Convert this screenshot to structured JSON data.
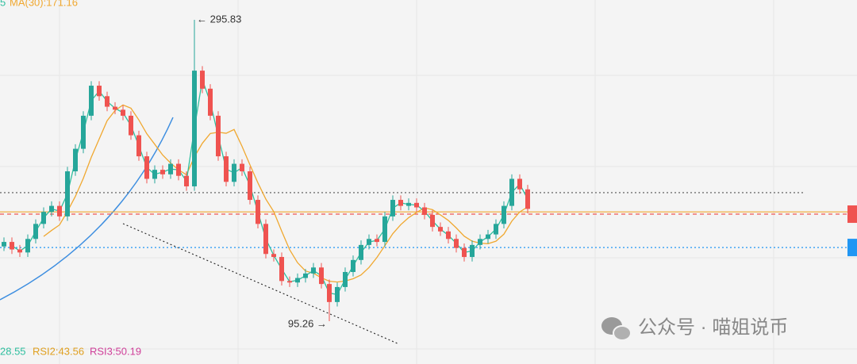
{
  "chart_data": {
    "type": "candlestick",
    "legend_top": {
      "partial": "5",
      "ma": "MA(30):171.16"
    },
    "legend_bottom": {
      "rsi1": "28.55",
      "rsi2": "RSI2:43.56",
      "rsi3": "RSI3:50.19"
    },
    "annotations": {
      "high": "← 295.83",
      "low": "95.26 →"
    },
    "watermark": "公众号 · 喵姐说币",
    "up_color": "#26a69a",
    "down_color": "#ef5350",
    "ma_color": "#f0a830",
    "ma_short_color": "#2fbf9f",
    "candles": {
      "open": [
        145,
        148,
        143,
        141,
        150,
        160,
        168,
        172,
        165,
        195,
        210,
        232,
        252,
        245,
        238,
        236,
        232,
        219,
        205,
        190,
        196,
        193,
        200,
        192,
        185,
        262,
        250,
        232,
        205,
        188,
        200,
        195,
        176,
        160,
        140,
        138,
        122,
        121,
        124,
        127,
        131,
        120,
        108,
        118,
        128,
        136,
        146,
        150,
        148,
        165,
        176,
        172,
        174,
        171,
        166,
        158,
        155,
        150,
        144,
        138,
        146,
        150,
        153,
        160,
        172,
        190,
        183
      ],
      "high": [
        151,
        151,
        146,
        153,
        163,
        171,
        175,
        175,
        198,
        213,
        235,
        255,
        255,
        248,
        241,
        239,
        235,
        222,
        208,
        199,
        199,
        203,
        203,
        195,
        295.83,
        265,
        253,
        235,
        208,
        203,
        203,
        198,
        179,
        163,
        143,
        141,
        125,
        127,
        130,
        134,
        134,
        123,
        121,
        131,
        139,
        149,
        153,
        153,
        168,
        179,
        179,
        177,
        177,
        174,
        169,
        161,
        158,
        153,
        147,
        149,
        153,
        156,
        163,
        175,
        193,
        193,
        186
      ],
      "low": [
        142,
        140,
        138,
        138,
        147,
        157,
        165,
        162,
        162,
        192,
        207,
        229,
        242,
        235,
        233,
        229,
        216,
        202,
        187,
        187,
        190,
        190,
        189,
        182,
        182,
        247,
        229,
        202,
        185,
        185,
        192,
        173,
        157,
        137,
        135,
        119,
        118,
        118,
        121,
        124,
        117,
        95.26,
        105,
        115,
        125,
        133,
        143,
        145,
        145,
        162,
        169,
        169,
        168,
        163,
        155,
        152,
        147,
        141,
        135,
        135,
        143,
        147,
        150,
        157,
        169,
        180,
        167
      ],
      "close": [
        148,
        143,
        141,
        150,
        160,
        168,
        172,
        165,
        195,
        210,
        232,
        252,
        245,
        238,
        236,
        232,
        219,
        205,
        190,
        196,
        193,
        200,
        192,
        185,
        262,
        250,
        232,
        205,
        188,
        200,
        195,
        176,
        160,
        140,
        138,
        122,
        121,
        124,
        127,
        131,
        120,
        108,
        118,
        128,
        136,
        146,
        150,
        148,
        165,
        176,
        172,
        174,
        171,
        166,
        158,
        155,
        150,
        144,
        138,
        146,
        150,
        153,
        160,
        172,
        190,
        183,
        170
      ]
    },
    "levels": [
      {
        "value": 180.8,
        "color": "#555555",
        "style": "dotted"
      },
      {
        "value": 168.0,
        "color": "#f0a830",
        "style": "solid"
      },
      {
        "value": 166.5,
        "color": "#ef5350",
        "style": "dashed"
      },
      {
        "value": 144.3,
        "color": "#2196f3",
        "style": "dotted"
      }
    ]
  }
}
